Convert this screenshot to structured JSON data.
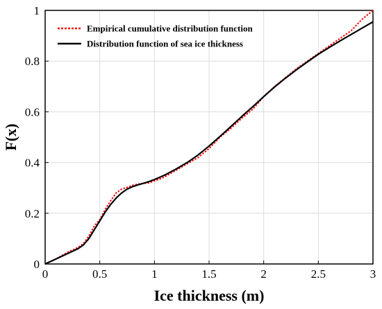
{
  "chart_data": {
    "type": "line",
    "xlabel": "Ice thickness (m)",
    "ylabel": "F(x)",
    "xlim": [
      0,
      3
    ],
    "ylim": [
      0,
      1
    ],
    "xticks": [
      0,
      0.5,
      1,
      1.5,
      2,
      2.5,
      3
    ],
    "xtick_labels": [
      "0",
      "0.5",
      "1",
      "1.5",
      "2",
      "2.5",
      "3"
    ],
    "yticks": [
      0,
      0.2,
      0.4,
      0.6,
      0.8,
      1
    ],
    "ytick_labels": [
      "0",
      "0.2",
      "0.4",
      "0.6",
      "0.8",
      "1"
    ],
    "grid": true,
    "legend_position": "top-left",
    "series": [
      {
        "name": "Empirical cumulative distribution function",
        "color": "#ff0000",
        "style": "dotted",
        "x": [
          0,
          0.1,
          0.2,
          0.3,
          0.35,
          0.4,
          0.45,
          0.5,
          0.55,
          0.6,
          0.65,
          0.7,
          0.75,
          0.8,
          0.85,
          0.9,
          0.95,
          1.0,
          1.05,
          1.1,
          1.2,
          1.3,
          1.4,
          1.5,
          1.6,
          1.7,
          1.8,
          1.9,
          2.0,
          2.1,
          2.2,
          2.3,
          2.4,
          2.5,
          2.6,
          2.7,
          2.8,
          2.9,
          3.0
        ],
        "y": [
          0,
          0.02,
          0.045,
          0.065,
          0.08,
          0.11,
          0.15,
          0.175,
          0.215,
          0.25,
          0.28,
          0.295,
          0.302,
          0.31,
          0.315,
          0.318,
          0.32,
          0.328,
          0.335,
          0.345,
          0.37,
          0.395,
          0.42,
          0.455,
          0.5,
          0.535,
          0.575,
          0.61,
          0.66,
          0.7,
          0.735,
          0.77,
          0.8,
          0.83,
          0.86,
          0.89,
          0.92,
          0.965,
          1.0
        ]
      },
      {
        "name": "Distribution function of sea ice thickness",
        "color": "#000000",
        "style": "solid",
        "x": [
          0,
          0.1,
          0.2,
          0.3,
          0.35,
          0.4,
          0.45,
          0.5,
          0.55,
          0.6,
          0.65,
          0.7,
          0.75,
          0.8,
          0.85,
          0.9,
          0.95,
          1.0,
          1.05,
          1.1,
          1.2,
          1.3,
          1.4,
          1.5,
          1.6,
          1.7,
          1.8,
          1.9,
          2.0,
          2.1,
          2.2,
          2.3,
          2.4,
          2.5,
          2.6,
          2.7,
          2.8,
          2.9,
          3.0
        ],
        "y": [
          0,
          0.02,
          0.04,
          0.06,
          0.075,
          0.1,
          0.135,
          0.17,
          0.205,
          0.235,
          0.26,
          0.28,
          0.295,
          0.305,
          0.312,
          0.318,
          0.325,
          0.333,
          0.342,
          0.352,
          0.375,
          0.4,
          0.43,
          0.465,
          0.503,
          0.542,
          0.582,
          0.62,
          0.66,
          0.698,
          0.733,
          0.766,
          0.797,
          0.827,
          0.854,
          0.88,
          0.905,
          0.93,
          0.955
        ]
      }
    ]
  }
}
